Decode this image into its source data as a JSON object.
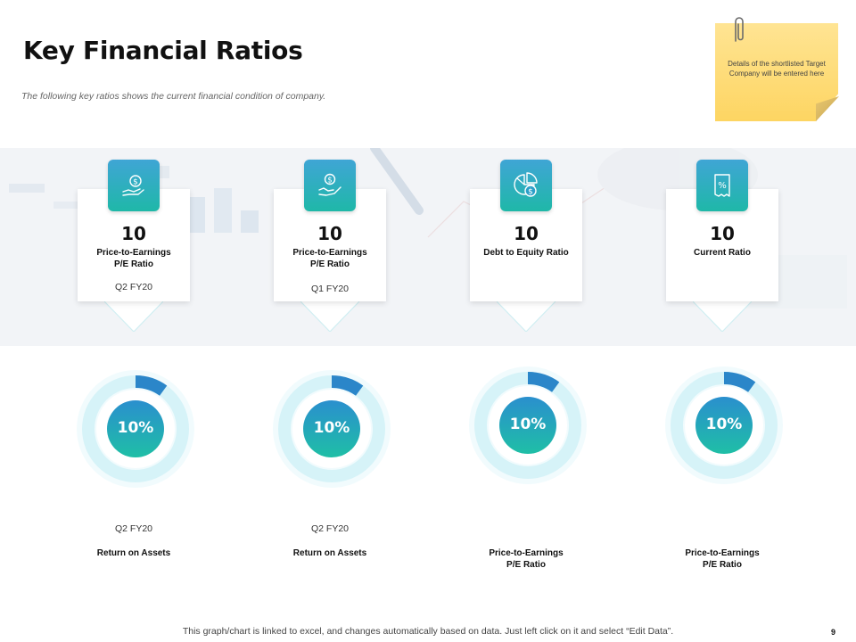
{
  "title": "Key Financial Ratios",
  "subtitle": "The following key ratios shows the current financial condition of company.",
  "sticky_note": "Details of the shortlisted Target Company will be entered here",
  "cards": [
    {
      "value": "10",
      "label_line1": "Price-to-Earnings",
      "label_line2": "P/E Ratio",
      "period": "Q2 FY20",
      "icon": "hand-coin-icon"
    },
    {
      "value": "10",
      "label_line1": "Price-to-Earnings",
      "label_line2": "P/E Ratio",
      "period": "Q1 FY20",
      "icon": "hand-dollar-icon"
    },
    {
      "value": "10",
      "label_line1": "Debt to Equity Ratio",
      "label_line2": "",
      "period": "",
      "icon": "pie-dollar-icon"
    },
    {
      "value": "10",
      "label_line1": "Current Ratio",
      "label_line2": "",
      "period": "",
      "icon": "receipt-percent-icon"
    }
  ],
  "donuts": [
    {
      "percent_label": "10%",
      "fraction": 0.1,
      "period": "Q2 FY20",
      "metric_line1": "Return on Assets",
      "metric_line2": ""
    },
    {
      "percent_label": "10%",
      "fraction": 0.1,
      "period": "Q2 FY20",
      "metric_line1": "Return on Assets",
      "metric_line2": ""
    },
    {
      "percent_label": "10%",
      "fraction": 0.1,
      "period": "",
      "metric_line1": "Price-to-Earnings",
      "metric_line2": "P/E Ratio"
    },
    {
      "percent_label": "10%",
      "fraction": 0.1,
      "period": "",
      "metric_line1": "Price-to-Earnings",
      "metric_line2": "P/E Ratio"
    }
  ],
  "footer": "This graph/chart is linked to excel, and changes automatically based on data. Just left click on it and select “Edit Data”.",
  "page_number": "9",
  "colors": {
    "accent_teal": "#1fb8a8",
    "accent_blue": "#2a7fc9",
    "ring_light": "#dff6fa",
    "sticky": "#fdd562"
  }
}
